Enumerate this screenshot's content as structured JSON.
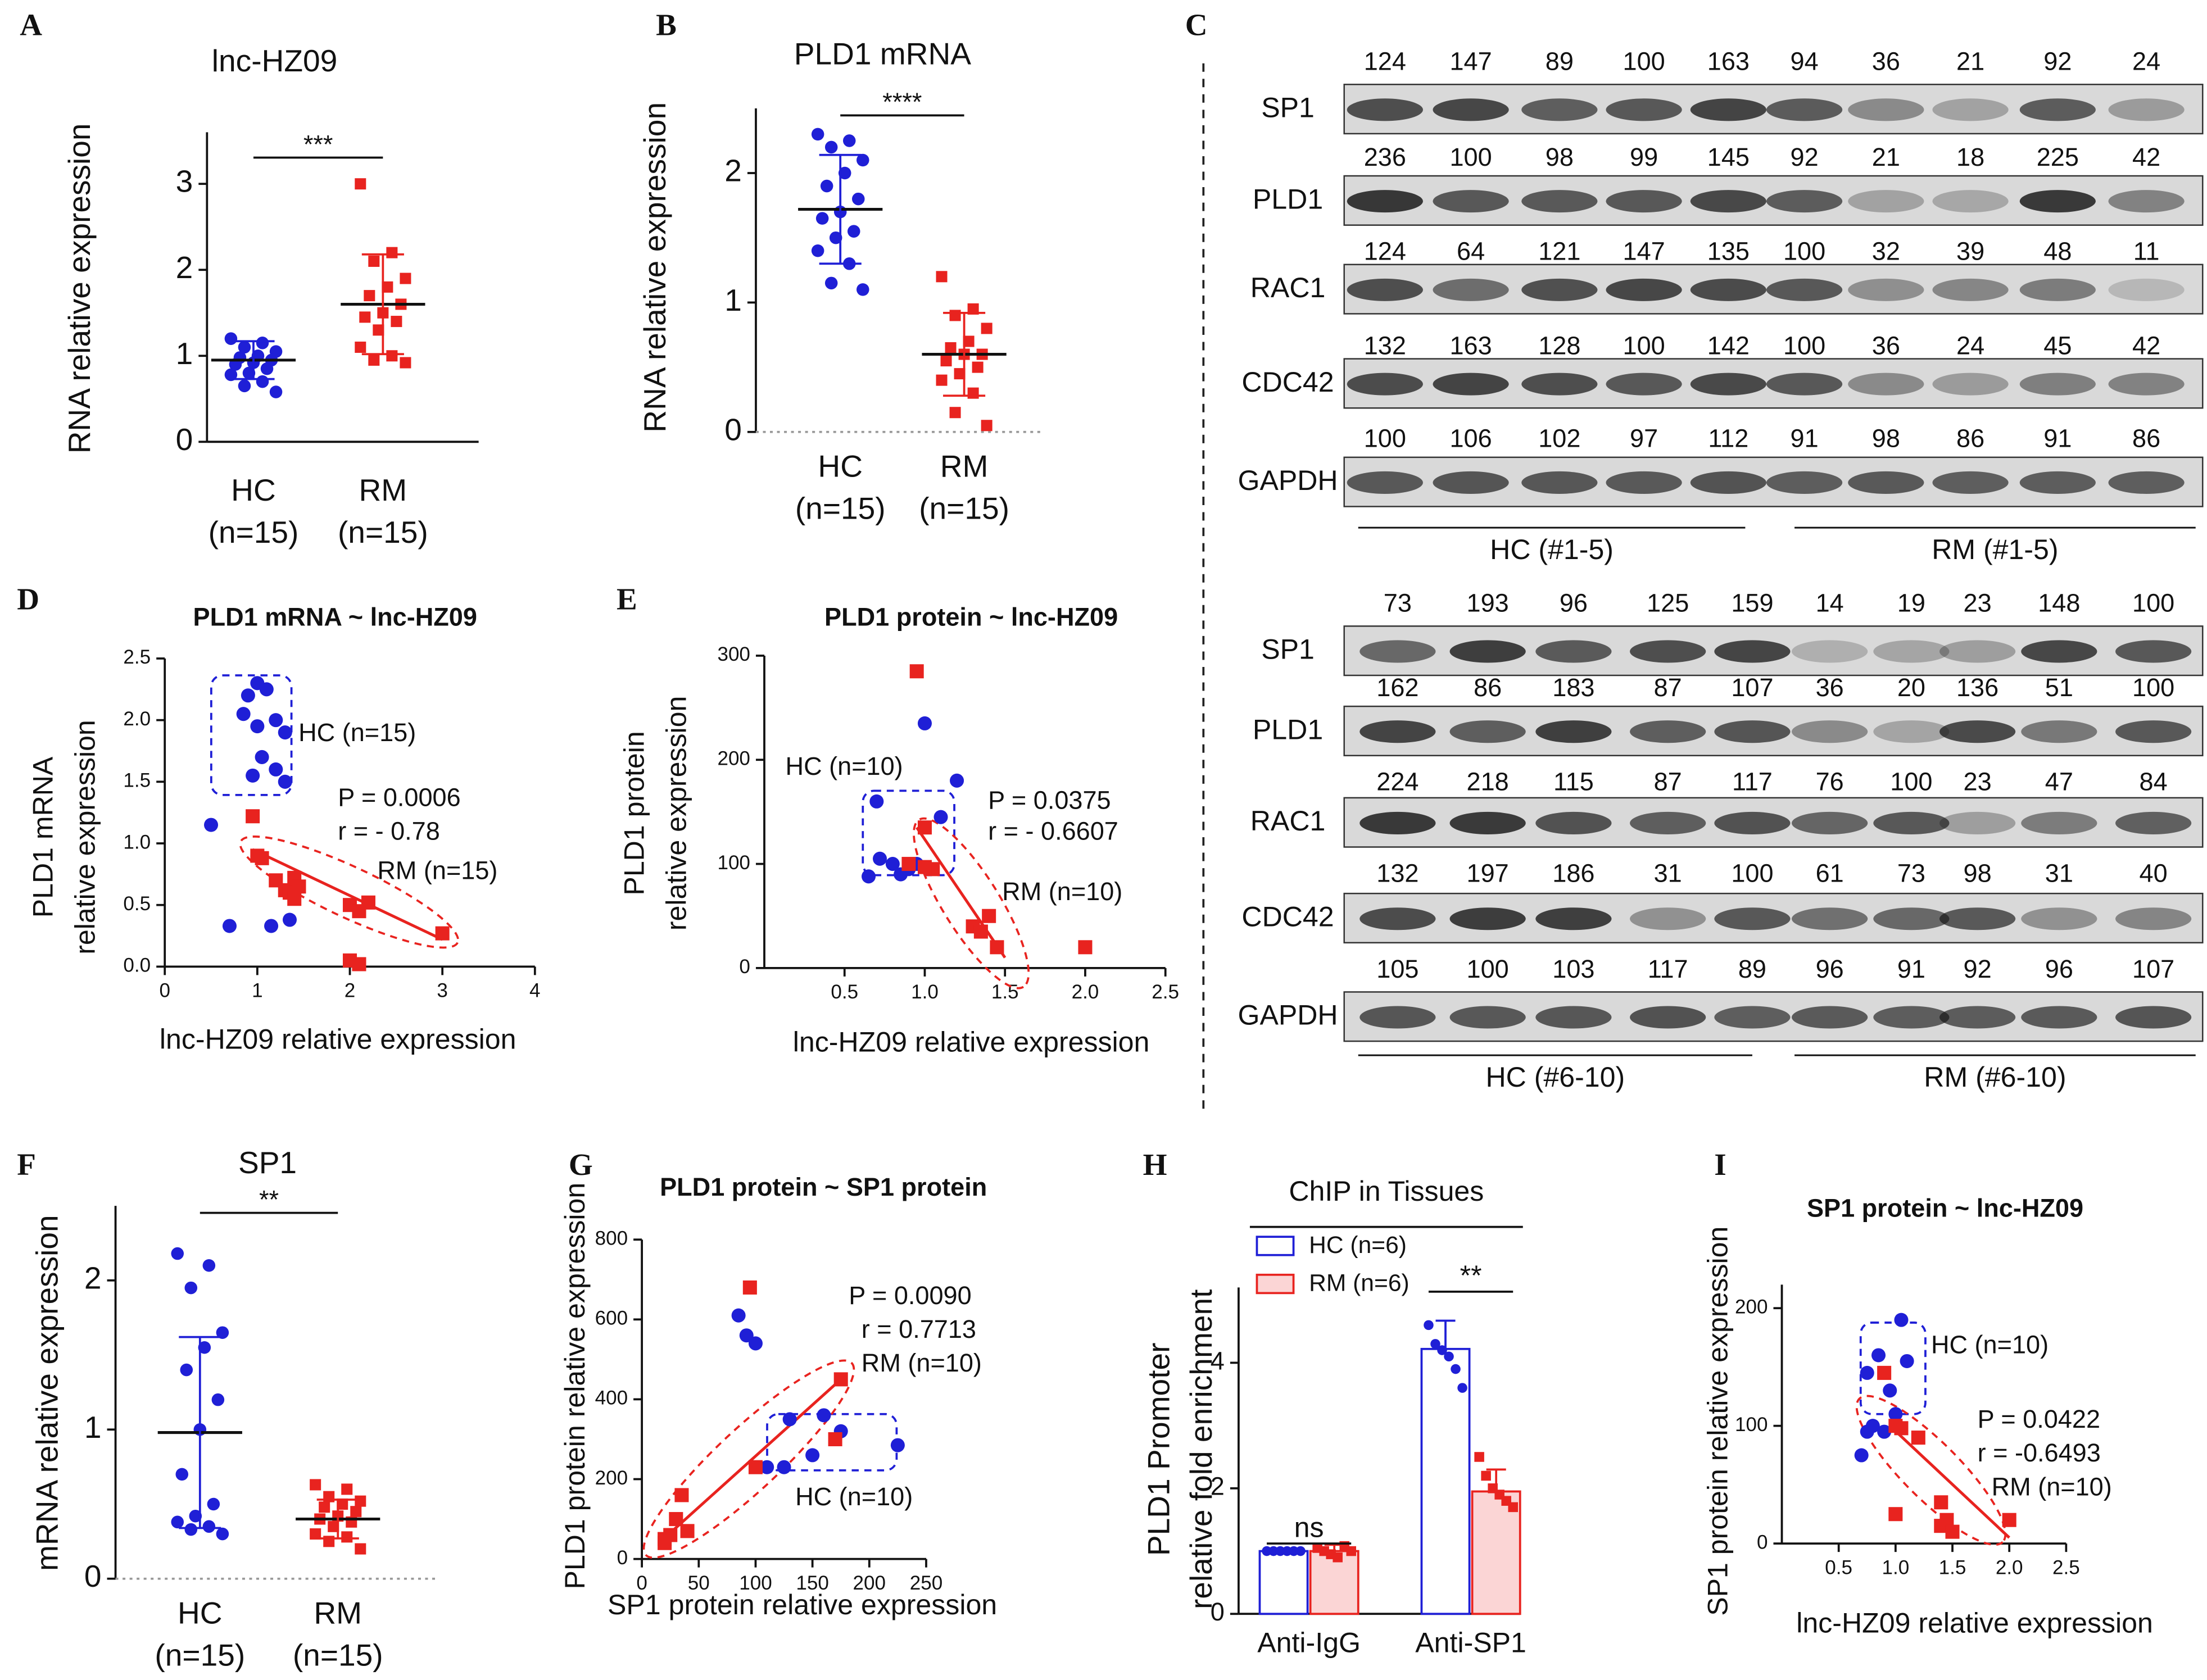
{
  "blots": {
    "panel": "C",
    "groups": [
      {
        "rows": [
          {
            "label": "SP1",
            "values": [
              124,
              147,
              89,
              100,
              163,
              94,
              36,
              21,
              92,
              24
            ]
          },
          {
            "label": "PLD1",
            "values": [
              236,
              100,
              98,
              99,
              145,
              92,
              21,
              18,
              225,
              42
            ]
          },
          {
            "label": "RAC1",
            "values": [
              124,
              64,
              121,
              147,
              135,
              100,
              32,
              39,
              48,
              11
            ]
          },
          {
            "label": "CDC42",
            "values": [
              132,
              163,
              128,
              100,
              142,
              100,
              36,
              24,
              45,
              42
            ]
          },
          {
            "label": "GAPDH",
            "values": [
              100,
              106,
              102,
              97,
              112,
              91,
              98,
              86,
              91,
              86
            ]
          }
        ],
        "labels": [
          "HC (#1-5)",
          "RM (#1-5)"
        ]
      },
      {
        "rows": [
          {
            "label": "SP1",
            "values": [
              73,
              193,
              96,
              125,
              159,
              14,
              19,
              23,
              148,
              100
            ]
          },
          {
            "label": "PLD1",
            "values": [
              162,
              86,
              183,
              87,
              107,
              36,
              20,
              136,
              51,
              100
            ]
          },
          {
            "label": "RAC1",
            "values": [
              224,
              218,
              115,
              87,
              117,
              76,
              100,
              23,
              47,
              84
            ]
          },
          {
            "label": "CDC42",
            "values": [
              132,
              197,
              186,
              31,
              100,
              61,
              73,
              98,
              31,
              40
            ]
          },
          {
            "label": "GAPDH",
            "values": [
              105,
              100,
              103,
              117,
              89,
              96,
              91,
              92,
              96,
              107
            ]
          }
        ],
        "labels": [
          "HC (#6-10)",
          "RM (#6-10)"
        ]
      }
    ]
  },
  "chart_data": [
    {
      "type": "dot",
      "panel": "A",
      "title": "lnc-HZ09",
      "ylabel": [
        "RNA relative expression"
      ],
      "categories": [
        "HC",
        "RM"
      ],
      "category_notes": [
        "(n=15)",
        "(n=15)"
      ],
      "ylim": [
        0,
        3.6
      ],
      "yticks": [
        0,
        1,
        2,
        3
      ],
      "significance": "***",
      "zero_line": false,
      "groups": [
        {
          "color": "#1f1fd6",
          "marker": "circle",
          "values": [
            1.2,
            1.15,
            1.1,
            1.05,
            1.0,
            0.98,
            0.95,
            0.92,
            0.9,
            0.85,
            0.8,
            0.78,
            0.7,
            0.65,
            0.58
          ],
          "mean": 0.95,
          "sd": 0.22
        },
        {
          "color": "#e8231f",
          "marker": "square",
          "values": [
            3.0,
            2.2,
            2.1,
            1.9,
            1.8,
            1.7,
            1.6,
            1.5,
            1.45,
            1.4,
            1.3,
            1.1,
            1.0,
            0.95,
            0.92
          ],
          "mean": 1.6,
          "sd": 0.58
        }
      ]
    },
    {
      "type": "dot",
      "panel": "B",
      "title": "PLD1 mRNA",
      "ylabel": [
        "RNA relative expression"
      ],
      "categories": [
        "HC",
        "RM"
      ],
      "category_notes": [
        "(n=15)",
        "(n=15)"
      ],
      "ylim": [
        0,
        2.5
      ],
      "yticks": [
        0,
        1,
        2
      ],
      "significance": "****",
      "zero_line": true,
      "groups": [
        {
          "color": "#1f1fd6",
          "marker": "circle",
          "values": [
            2.3,
            2.25,
            2.2,
            2.1,
            2.0,
            1.9,
            1.8,
            1.7,
            1.65,
            1.55,
            1.5,
            1.4,
            1.3,
            1.15,
            1.1
          ],
          "mean": 1.72,
          "sd": 0.42
        },
        {
          "color": "#e8231f",
          "marker": "square",
          "values": [
            1.2,
            0.95,
            0.9,
            0.8,
            0.7,
            0.65,
            0.6,
            0.6,
            0.55,
            0.5,
            0.45,
            0.4,
            0.3,
            0.15,
            0.05
          ],
          "mean": 0.6,
          "sd": 0.32
        }
      ]
    },
    {
      "type": "scatter",
      "panel": "D",
      "title": "PLD1 mRNA ~ lnc-HZ09",
      "xlabel": "lnc-HZ09 relative expression",
      "ylabel": [
        "PLD1 mRNA",
        "relative expression"
      ],
      "xlim": [
        0,
        4
      ],
      "xticks": [
        0,
        1,
        2,
        3,
        4
      ],
      "ylim": [
        0,
        2.5
      ],
      "yticks": [
        {
          "value": 0,
          "label": "0.0"
        },
        0.5,
        {
          "value": 1,
          "label": "1.0"
        },
        1.5,
        {
          "value": 2,
          "label": "2.0"
        },
        2.5
      ],
      "series": [
        {
          "color": "#1f1fd6",
          "marker": "circle",
          "x": [
            0.5,
            0.7,
            0.9,
            1.0,
            1.1,
            1.2,
            0.85,
            1.3,
            1.05,
            1.2,
            0.95,
            1.3,
            1.15,
            1.35,
            1.0
          ],
          "y": [
            1.15,
            0.33,
            2.2,
            2.3,
            2.25,
            2.0,
            2.05,
            1.9,
            1.7,
            1.6,
            1.55,
            1.5,
            0.33,
            0.38,
            1.95
          ]
        },
        {
          "color": "#e8231f",
          "marker": "square",
          "x": [
            0.95,
            1.0,
            1.05,
            1.2,
            1.3,
            1.35,
            1.4,
            1.45,
            1.4,
            2.0,
            2.1,
            2.0,
            2.1,
            2.2,
            3.0
          ],
          "y": [
            1.22,
            0.9,
            0.88,
            0.7,
            0.62,
            0.6,
            0.72,
            0.65,
            0.55,
            0.05,
            0.02,
            0.5,
            0.45,
            0.52,
            0.27
          ]
        }
      ],
      "fit": {
        "color": "#e8231f",
        "x": [
          0.95,
          3.0
        ],
        "y": [
          0.95,
          0.22
        ]
      },
      "annotations": [
        {
          "text": "HC (n=15)",
          "color": "#1f1fd6"
        },
        {
          "text": "P = 0.0006",
          "color": "#e8231f"
        },
        {
          "text": "r = - 0.78",
          "color": "#e8231f"
        },
        {
          "text": "RM (n=15)",
          "color": "#e8231f"
        }
      ]
    },
    {
      "type": "scatter",
      "panel": "E",
      "title": "PLD1 protein ~ lnc-HZ09",
      "xlabel": "lnc-HZ09 relative expression",
      "ylabel": [
        "PLD1 protein",
        "relative expression"
      ],
      "xlim": [
        0,
        2.5
      ],
      "xticks": [
        0.5,
        {
          "value": 1,
          "label": "1.0"
        },
        1.5,
        {
          "value": 2,
          "label": "2.0"
        },
        2.5
      ],
      "ylim": [
        0,
        300
      ],
      "yticks": [
        0,
        100,
        200,
        300
      ],
      "series": [
        {
          "color": "#1f1fd6",
          "marker": "circle",
          "x": [
            0.65,
            0.7,
            0.72,
            0.8,
            0.9,
            0.85,
            1.0,
            1.2,
            1.1,
            0.95
          ],
          "y": [
            88,
            160,
            105,
            100,
            95,
            90,
            235,
            180,
            145,
            100
          ]
        },
        {
          "color": "#e8231f",
          "marker": "square",
          "x": [
            0.95,
            0.9,
            1.0,
            1.05,
            1.3,
            1.35,
            1.4,
            1.45,
            2.0,
            1.0
          ],
          "y": [
            285,
            100,
            135,
            95,
            40,
            35,
            50,
            20,
            20,
            97
          ]
        }
      ],
      "fit": {
        "color": "#e8231f",
        "x": [
          0.95,
          1.5
        ],
        "y": [
          135,
          10
        ]
      },
      "annotations": [
        {
          "text": "HC (n=10)",
          "color": "#1f1fd6"
        },
        {
          "text": "P = 0.0375",
          "color": "#e8231f"
        },
        {
          "text": "r = - 0.6607",
          "color": "#e8231f"
        },
        {
          "text": "RM (n=10)",
          "color": "#e8231f"
        }
      ]
    },
    {
      "type": "dot",
      "panel": "F",
      "title": "SP1",
      "ylabel": [
        "mRNA relative expression"
      ],
      "categories": [
        "HC",
        "RM"
      ],
      "category_notes": [
        "(n=15)",
        "(n=15)"
      ],
      "ylim": [
        0,
        2.5
      ],
      "yticks": [
        0,
        1,
        2
      ],
      "significance": "**",
      "zero_line": true,
      "groups": [
        {
          "color": "#1f1fd6",
          "marker": "circle",
          "values": [
            2.18,
            2.1,
            1.95,
            1.65,
            1.55,
            1.4,
            1.2,
            1.0,
            0.7,
            0.5,
            0.42,
            0.38,
            0.35,
            0.33,
            0.3
          ],
          "mean": 0.98,
          "sd": 0.64
        },
        {
          "color": "#e8231f",
          "marker": "square",
          "values": [
            0.63,
            0.6,
            0.55,
            0.52,
            0.5,
            0.48,
            0.45,
            0.42,
            0.4,
            0.38,
            0.35,
            0.3,
            0.28,
            0.25,
            0.2
          ],
          "mean": 0.4,
          "sd": 0.13
        }
      ]
    },
    {
      "type": "scatter",
      "panel": "G",
      "title": "PLD1 protein ~ SP1 protein",
      "xlabel": "SP1 protein relative expression",
      "ylabel": [
        "PLD1  protein relative expression"
      ],
      "xlim": [
        0,
        250
      ],
      "xticks": [
        0,
        50,
        100,
        150,
        200,
        250
      ],
      "ylim": [
        0,
        800
      ],
      "yticks": [
        0,
        200,
        400,
        600,
        800
      ],
      "series": [
        {
          "color": "#1f1fd6",
          "marker": "circle",
          "x": [
            85,
            92,
            100,
            110,
            125,
            150,
            160,
            175,
            225,
            130
          ],
          "y": [
            610,
            560,
            540,
            230,
            230,
            260,
            360,
            320,
            285,
            350
          ]
        },
        {
          "color": "#e8231f",
          "marker": "square",
          "x": [
            95,
            175,
            170,
            20,
            25,
            30,
            35,
            40,
            100,
            20
          ],
          "y": [
            680,
            450,
            300,
            50,
            60,
            100,
            160,
            70,
            230,
            40
          ]
        }
      ],
      "fit": {
        "color": "#e8231f",
        "x": [
          15,
          175
        ],
        "y": [
          40,
          450
        ]
      },
      "annotations": [
        {
          "text": "P = 0.0090",
          "color": "#e8231f"
        },
        {
          "text": "r = 0.7713",
          "color": "#e8231f"
        },
        {
          "text": "RM (n=10)",
          "color": "#e8231f"
        },
        {
          "text": "HC (n=10)",
          "color": "#1f1fd6"
        }
      ]
    },
    {
      "type": "bar",
      "panel": "H",
      "title": "ChIP in Tissues",
      "ylabel": [
        "PLD1 Promoter",
        "relative fold enrichment"
      ],
      "categories": [
        "Anti-IgG",
        "Anti-SP1"
      ],
      "ylim": [
        0,
        5.2
      ],
      "yticks": [
        0,
        2,
        4
      ],
      "significance": [
        "ns",
        "**"
      ],
      "series": [
        {
          "name": "HC (n=6)",
          "color": "#1f1fd6",
          "fill": "#ffffff",
          "values": [
            1.0,
            4.22
          ],
          "errors": [
            0.03,
            0.45
          ],
          "points": [
            [
              1.0,
              1.0,
              1.0,
              1.0,
              1.0,
              1.0
            ],
            [
              4.6,
              4.3,
              4.2,
              4.1,
              3.9,
              3.6
            ]
          ]
        },
        {
          "name": "RM (n=6)",
          "color": "#e8231f",
          "fill": "#fbd5d5",
          "values": [
            1.0,
            1.95
          ],
          "errors": [
            0.1,
            0.35
          ],
          "points": [
            [
              1.05,
              1.0,
              0.95,
              0.9,
              1.08,
              1.0
            ],
            [
              2.5,
              2.2,
              2.0,
              1.9,
              1.8,
              1.7
            ]
          ]
        }
      ]
    },
    {
      "type": "scatter",
      "panel": "I",
      "title": "SP1 protein ~ lnc-HZ09",
      "xlabel": "lnc-HZ09 relative expression",
      "ylabel": [
        "SP1  protein relative expression"
      ],
      "xlim": [
        0,
        2.5
      ],
      "xticks": [
        0.5,
        {
          "value": 1,
          "label": "1.0"
        },
        1.5,
        {
          "value": 2,
          "label": "2.0"
        },
        2.5
      ],
      "ylim": [
        0,
        220
      ],
      "yticks": [
        0,
        100,
        200
      ],
      "series": [
        {
          "color": "#1f1fd6",
          "marker": "circle",
          "x": [
            0.7,
            0.75,
            0.8,
            0.85,
            0.9,
            0.95,
            1.05,
            1.1,
            1.0,
            0.75
          ],
          "y": [
            75,
            145,
            100,
            160,
            95,
            130,
            190,
            155,
            110,
            95
          ]
        },
        {
          "color": "#e8231f",
          "marker": "square",
          "x": [
            0.9,
            1.0,
            1.2,
            1.0,
            1.4,
            1.45,
            1.4,
            2.0,
            1.5,
            1.05
          ],
          "y": [
            145,
            100,
            90,
            25,
            35,
            20,
            15,
            20,
            10,
            98
          ]
        }
      ],
      "fit": {
        "color": "#e8231f",
        "x": [
          0.95,
          2.0
        ],
        "y": [
          100,
          5
        ]
      },
      "annotations": [
        {
          "text": "HC (n=10)",
          "color": "#1f1fd6"
        },
        {
          "text": "P = 0.0422",
          "color": "#e8231f"
        },
        {
          "text": "r = -0.6493",
          "color": "#e8231f"
        },
        {
          "text": "RM (n=10)",
          "color": "#e8231f"
        }
      ]
    }
  ]
}
